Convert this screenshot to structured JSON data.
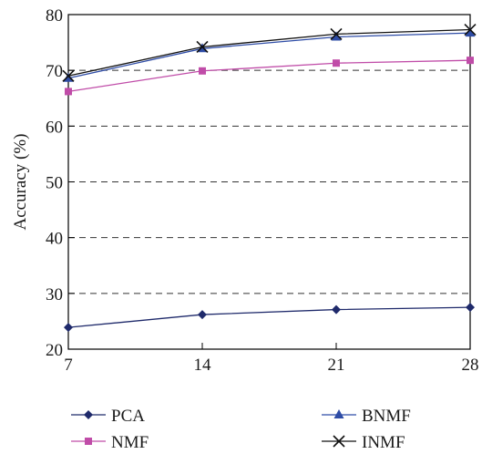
{
  "chart_data": {
    "type": "line",
    "title": "",
    "xlabel": "",
    "ylabel": "Accuracy (%)",
    "x": [
      7,
      14,
      21,
      28
    ],
    "xlim": [
      7,
      28
    ],
    "ylim": [
      20,
      80
    ],
    "xticks": [
      "7",
      "14",
      "21",
      "28"
    ],
    "yticks": [
      "20",
      "30",
      "40",
      "50",
      "60",
      "70",
      "80"
    ],
    "grid": "dashed horizontal",
    "legend_placement": "bottom",
    "series": [
      {
        "name": "PCA",
        "values": [
          23.9,
          26.2,
          27.1,
          27.5
        ],
        "color": "#1f2a6b",
        "marker": "diamond"
      },
      {
        "name": "NMF",
        "values": [
          66.2,
          69.9,
          71.3,
          71.8
        ],
        "color": "#c04ca8",
        "marker": "square"
      },
      {
        "name": "BNMF",
        "values": [
          68.6,
          73.9,
          76.0,
          76.7
        ],
        "color": "#2e4ca6",
        "marker": "triangle"
      },
      {
        "name": "INMF",
        "values": [
          69.0,
          74.2,
          76.5,
          77.3
        ],
        "color": "#111111",
        "marker": "x"
      }
    ]
  }
}
